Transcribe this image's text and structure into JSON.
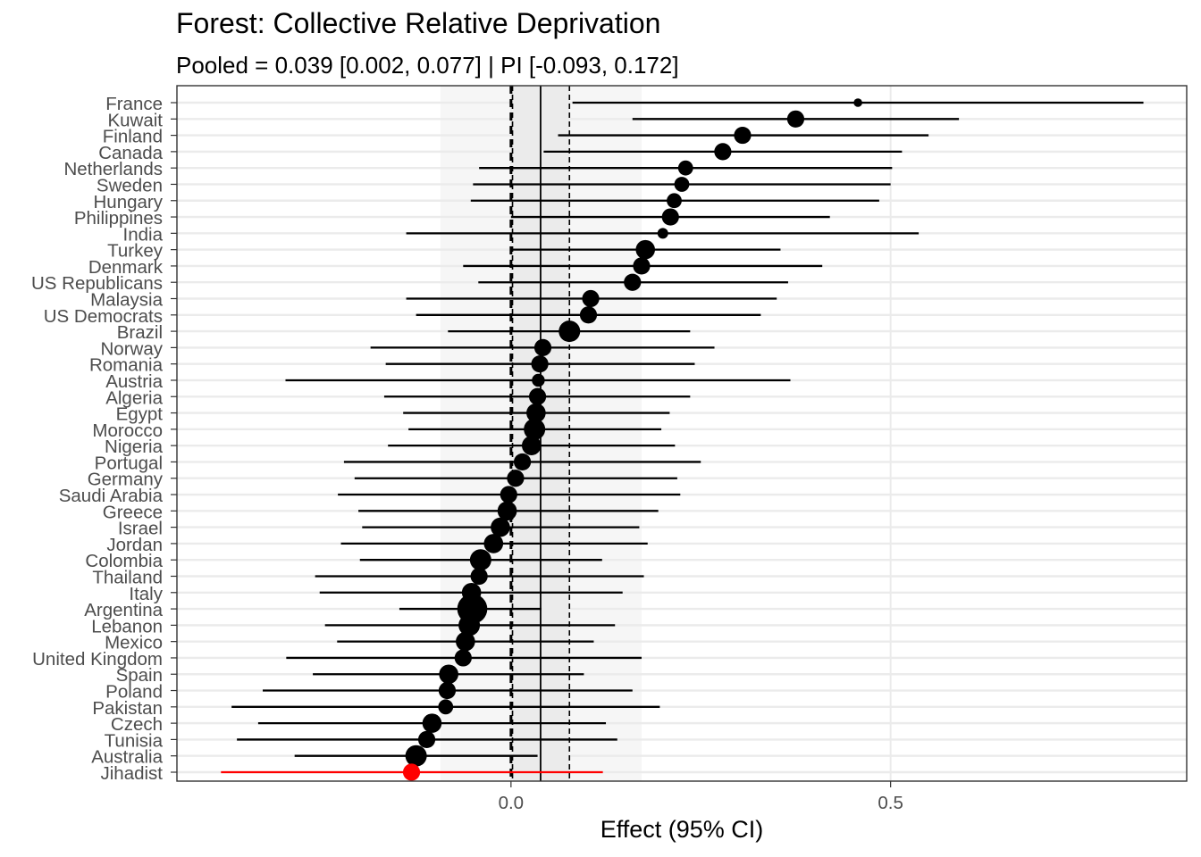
{
  "chart_data": {
    "type": "forest",
    "title": "Forest: Collective Relative Deprivation",
    "subtitle": "Pooled = 0.039 [0.002, 0.077] | PI [-0.093, 0.172]",
    "xlabel": "Effect (95% CI)",
    "ylabel": "",
    "xlim": [
      -0.44,
      0.89
    ],
    "x_ticks": [
      0.0,
      0.5
    ],
    "x_tick_labels": [
      "0.0",
      "0.5"
    ],
    "pooled": {
      "estimate": 0.039,
      "ci": [
        0.002,
        0.077
      ],
      "pi": [
        -0.093,
        0.172
      ]
    },
    "null_line": 0,
    "grid": true,
    "highlight_color": "#ff0000",
    "point_color": "#000000",
    "studies": [
      {
        "label": "France",
        "est": 0.457,
        "lo": 0.081,
        "hi": 0.833,
        "weight": 1
      },
      {
        "label": "Kuwait",
        "est": 0.375,
        "lo": 0.16,
        "hi": 0.59,
        "weight": 3
      },
      {
        "label": "Finland",
        "est": 0.305,
        "lo": 0.062,
        "hi": 0.55,
        "weight": 3
      },
      {
        "label": "Canada",
        "est": 0.279,
        "lo": 0.043,
        "hi": 0.515,
        "weight": 3
      },
      {
        "label": "Netherlands",
        "est": 0.23,
        "lo": -0.042,
        "hi": 0.502,
        "weight": 2.5
      },
      {
        "label": "Sweden",
        "est": 0.225,
        "lo": -0.05,
        "hi": 0.5,
        "weight": 2.5
      },
      {
        "label": "Hungary",
        "est": 0.215,
        "lo": -0.053,
        "hi": 0.485,
        "weight": 2.5
      },
      {
        "label": "Philippines",
        "est": 0.21,
        "lo": 0.0,
        "hi": 0.42,
        "weight": 3
      },
      {
        "label": "India",
        "est": 0.2,
        "lo": -0.138,
        "hi": 0.537,
        "weight": 1.5
      },
      {
        "label": "Turkey",
        "est": 0.177,
        "lo": 0.0,
        "hi": 0.355,
        "weight": 3.5
      },
      {
        "label": "Denmark",
        "est": 0.172,
        "lo": -0.063,
        "hi": 0.41,
        "weight": 3
      },
      {
        "label": "US Republicans",
        "est": 0.16,
        "lo": -0.043,
        "hi": 0.365,
        "weight": 3
      },
      {
        "label": "Malaysia",
        "est": 0.105,
        "lo": -0.138,
        "hi": 0.35,
        "weight": 3
      },
      {
        "label": "US Democrats",
        "est": 0.102,
        "lo": -0.125,
        "hi": 0.329,
        "weight": 3
      },
      {
        "label": "Brazil",
        "est": 0.077,
        "lo": -0.083,
        "hi": 0.236,
        "weight": 4
      },
      {
        "label": "Norway",
        "est": 0.042,
        "lo": -0.185,
        "hi": 0.268,
        "weight": 3
      },
      {
        "label": "Romania",
        "est": 0.038,
        "lo": -0.165,
        "hi": 0.242,
        "weight": 3
      },
      {
        "label": "Austria",
        "est": 0.036,
        "lo": -0.297,
        "hi": 0.368,
        "weight": 2
      },
      {
        "label": "Algeria",
        "est": 0.035,
        "lo": -0.167,
        "hi": 0.236,
        "weight": 3
      },
      {
        "label": "Egypt",
        "est": 0.033,
        "lo": -0.142,
        "hi": 0.209,
        "weight": 3.5
      },
      {
        "label": "Morocco",
        "est": 0.031,
        "lo": -0.135,
        "hi": 0.198,
        "weight": 4
      },
      {
        "label": "Nigeria",
        "est": 0.027,
        "lo": -0.162,
        "hi": 0.216,
        "weight": 3.5
      },
      {
        "label": "Portugal",
        "est": 0.015,
        "lo": -0.22,
        "hi": 0.25,
        "weight": 3
      },
      {
        "label": "Germany",
        "est": 0.006,
        "lo": -0.206,
        "hi": 0.219,
        "weight": 3
      },
      {
        "label": "Saudi Arabia",
        "est": -0.003,
        "lo": -0.228,
        "hi": 0.223,
        "weight": 3
      },
      {
        "label": "Greece",
        "est": -0.005,
        "lo": -0.201,
        "hi": 0.194,
        "weight": 3.5
      },
      {
        "label": "Israel",
        "est": -0.014,
        "lo": -0.196,
        "hi": 0.169,
        "weight": 3.5
      },
      {
        "label": "Jordan",
        "est": -0.023,
        "lo": -0.224,
        "hi": 0.18,
        "weight": 3.5
      },
      {
        "label": "Colombia",
        "est": -0.04,
        "lo": -0.199,
        "hi": 0.12,
        "weight": 4
      },
      {
        "label": "Thailand",
        "est": -0.042,
        "lo": -0.258,
        "hi": 0.175,
        "weight": 3
      },
      {
        "label": "Italy",
        "est": -0.052,
        "lo": -0.252,
        "hi": 0.147,
        "weight": 3.5
      },
      {
        "label": "Argentina",
        "est": -0.051,
        "lo": -0.147,
        "hi": 0.04,
        "weight": 6
      },
      {
        "label": "Lebanon",
        "est": -0.055,
        "lo": -0.245,
        "hi": 0.137,
        "weight": 4
      },
      {
        "label": "Mexico",
        "est": -0.06,
        "lo": -0.229,
        "hi": 0.109,
        "weight": 3.5
      },
      {
        "label": "United Kingdom",
        "est": -0.063,
        "lo": -0.296,
        "hi": 0.172,
        "weight": 3
      },
      {
        "label": "Spain",
        "est": -0.082,
        "lo": -0.261,
        "hi": 0.096,
        "weight": 3.5
      },
      {
        "label": "Poland",
        "est": -0.084,
        "lo": -0.327,
        "hi": 0.16,
        "weight": 3
      },
      {
        "label": "Pakistan",
        "est": -0.086,
        "lo": -0.368,
        "hi": 0.196,
        "weight": 2.5
      },
      {
        "label": "Czech",
        "est": -0.104,
        "lo": -0.333,
        "hi": 0.125,
        "weight": 3.5
      },
      {
        "label": "Tunisia",
        "est": -0.111,
        "lo": -0.361,
        "hi": 0.14,
        "weight": 3
      },
      {
        "label": "Australia",
        "est": -0.125,
        "lo": -0.285,
        "hi": 0.035,
        "weight": 4
      },
      {
        "label": "Jihadist",
        "est": -0.131,
        "lo": -0.382,
        "hi": 0.121,
        "weight": 3,
        "highlight": true
      }
    ]
  }
}
